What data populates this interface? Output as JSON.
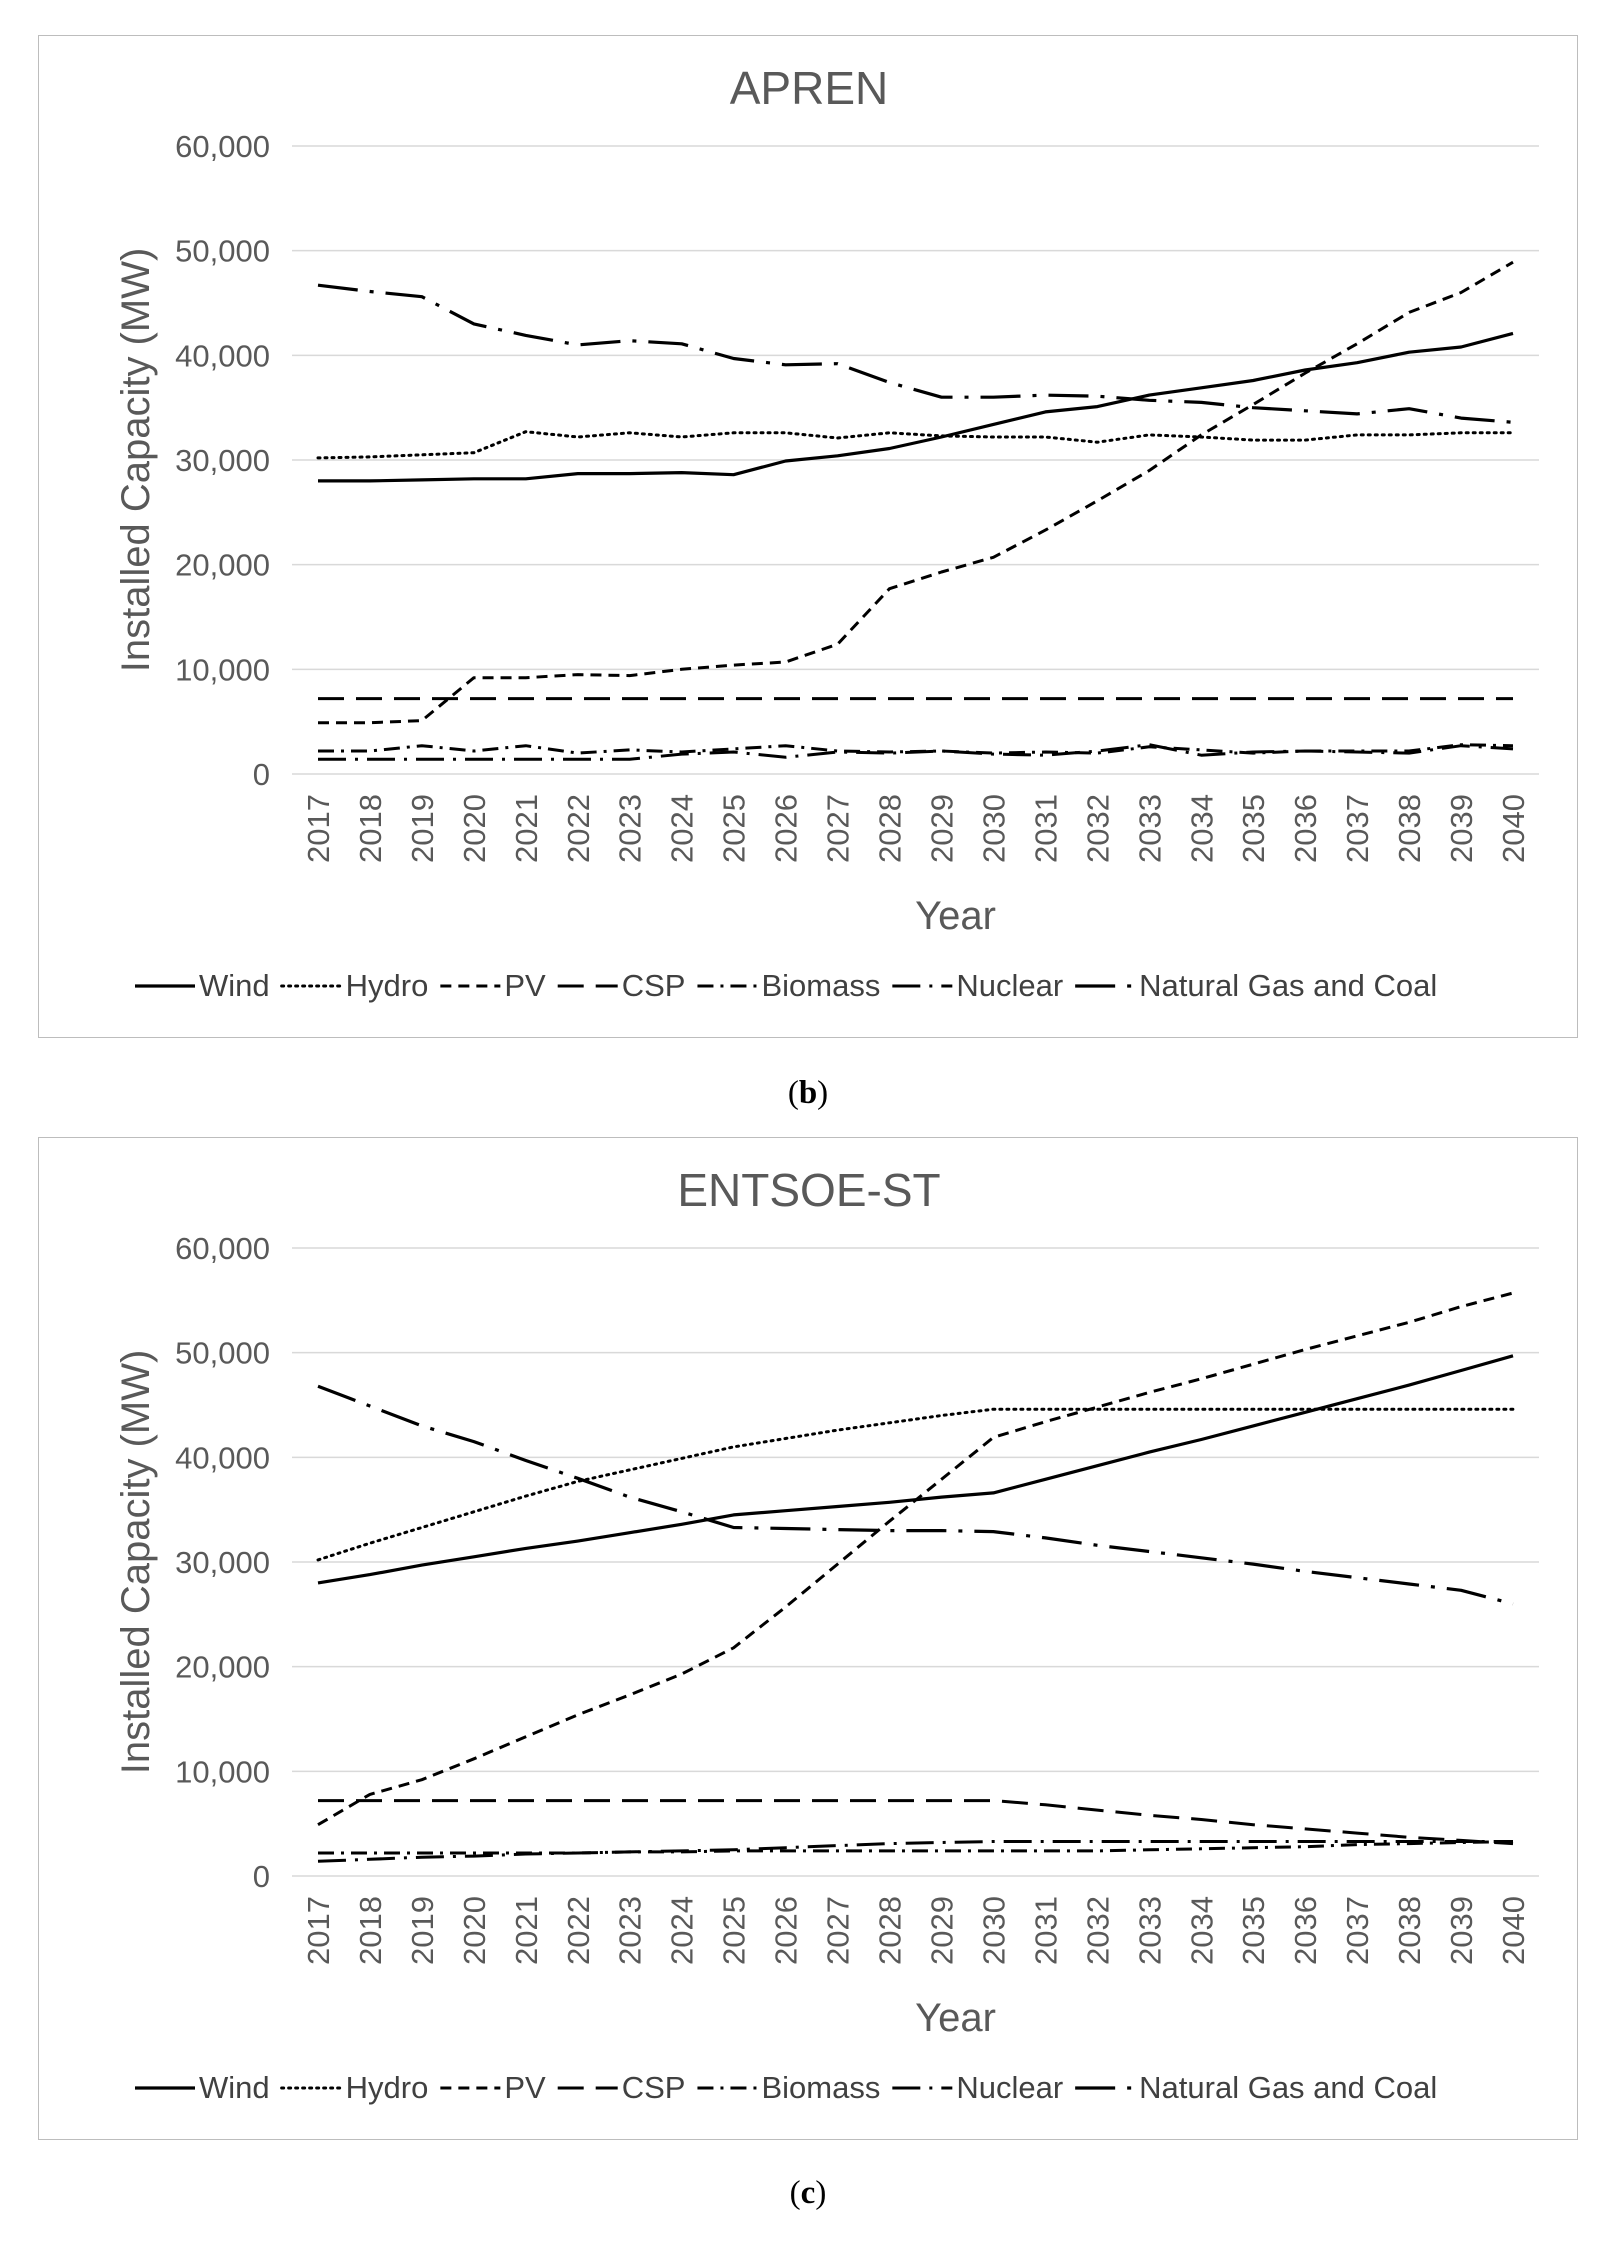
{
  "chart_data": [
    {
      "id": "b",
      "type": "line",
      "caption_label": "b",
      "title": "APREN",
      "xlabel": "Year",
      "ylabel": "Installed Capacity (MW)",
      "ylim": [
        0,
        60000
      ],
      "yticks": [
        0,
        10000,
        20000,
        30000,
        40000,
        50000,
        60000
      ],
      "ytick_labels": [
        "0",
        "10,000",
        "20,000",
        "30,000",
        "40,000",
        "50,000",
        "60,000"
      ],
      "grid": true,
      "legend_position": "bottom",
      "categories": [
        "2017",
        "2018",
        "2019",
        "2020",
        "2021",
        "2022",
        "2023",
        "2024",
        "2025",
        "2026",
        "2027",
        "2028",
        "2029",
        "2030",
        "2031",
        "2032",
        "2033",
        "2034",
        "2035",
        "2036",
        "2037",
        "2038",
        "2039",
        "2040"
      ],
      "series": [
        {
          "name": "Wind",
          "style": "solid",
          "values": [
            28000,
            28000,
            28100,
            28200,
            28200,
            28700,
            28700,
            28800,
            28600,
            29900,
            30400,
            31100,
            32200,
            33400,
            34600,
            35100,
            36200,
            36900,
            37600,
            38600,
            39300,
            40300,
            40800,
            42100
          ]
        },
        {
          "name": "Hydro",
          "style": "dotted",
          "values": [
            30200,
            30300,
            30500,
            30700,
            32700,
            32200,
            32600,
            32200,
            32600,
            32600,
            32100,
            32600,
            32300,
            32200,
            32200,
            31700,
            32400,
            32200,
            31900,
            31900,
            32400,
            32400,
            32600,
            32600
          ]
        },
        {
          "name": "PV",
          "style": "short-dash",
          "values": [
            4900,
            4900,
            5100,
            9200,
            9200,
            9500,
            9400,
            10000,
            10400,
            10700,
            12400,
            17700,
            19300,
            20700,
            23300,
            26100,
            29000,
            32400,
            35300,
            38300,
            41100,
            44100,
            46000,
            48900
          ]
        },
        {
          "name": "CSP",
          "style": "long-dash",
          "values": [
            7200,
            7200,
            7200,
            7200,
            7200,
            7200,
            7200,
            7200,
            7200,
            7200,
            7200,
            7200,
            7200,
            7200,
            7200,
            7200,
            7200,
            7200,
            7200,
            7200,
            7200,
            7200,
            7200,
            7200
          ]
        },
        {
          "name": "Biomass",
          "style": "dash-dot",
          "values": [
            2200,
            2200,
            2700,
            2200,
            2700,
            2000,
            2300,
            2100,
            2400,
            2700,
            2200,
            2100,
            2200,
            2000,
            2100,
            2000,
            2600,
            2300,
            2000,
            2200,
            2200,
            2200,
            2800,
            2700
          ]
        },
        {
          "name": "Nuclear",
          "style": "long-dash-dot",
          "values": [
            1400,
            1400,
            1400,
            1400,
            1400,
            1400,
            1400,
            1900,
            2100,
            1600,
            2100,
            2000,
            2200,
            1900,
            1800,
            2200,
            2800,
            1800,
            2100,
            2200,
            2100,
            2000,
            2700,
            2400
          ]
        },
        {
          "name": "Natural Gas and Coal",
          "style": "long-dash-dot-bold",
          "values": [
            46700,
            46100,
            45600,
            43000,
            41900,
            41000,
            41400,
            41100,
            39700,
            39100,
            39200,
            37400,
            36000,
            36000,
            36200,
            36100,
            35700,
            35500,
            35000,
            34700,
            34400,
            34900,
            34000,
            33600
          ]
        }
      ]
    },
    {
      "id": "c",
      "type": "line",
      "caption_label": "c",
      "title": "ENTSOE-ST",
      "xlabel": "Year",
      "ylabel": "Installed Capacity (MW)",
      "ylim": [
        0,
        60000
      ],
      "yticks": [
        0,
        10000,
        20000,
        30000,
        40000,
        50000,
        60000
      ],
      "ytick_labels": [
        "0",
        "10,000",
        "20,000",
        "30,000",
        "40,000",
        "50,000",
        "60,000"
      ],
      "grid": true,
      "legend_position": "bottom",
      "categories": [
        "2017",
        "2018",
        "2019",
        "2020",
        "2021",
        "2022",
        "2023",
        "2024",
        "2025",
        "2026",
        "2027",
        "2028",
        "2029",
        "2030",
        "2031",
        "2032",
        "2033",
        "2034",
        "2035",
        "2036",
        "2037",
        "2038",
        "2039",
        "2040"
      ],
      "series": [
        {
          "name": "Wind",
          "style": "solid",
          "values": [
            28000,
            28800,
            29700,
            30500,
            31300,
            32000,
            32800,
            33600,
            34500,
            34900,
            35300,
            35700,
            36200,
            36600,
            37900,
            39200,
            40500,
            41700,
            43000,
            44300,
            45600,
            46900,
            48300,
            49700
          ]
        },
        {
          "name": "Hydro",
          "style": "dotted",
          "values": [
            30200,
            31800,
            33300,
            34800,
            36300,
            37700,
            38800,
            39900,
            41000,
            41800,
            42600,
            43300,
            44000,
            44600,
            44600,
            44600,
            44600,
            44600,
            44600,
            44600,
            44600,
            44600,
            44600,
            44600
          ]
        },
        {
          "name": "PV",
          "style": "short-dash",
          "values": [
            4900,
            7800,
            9200,
            11200,
            13300,
            15400,
            17300,
            19300,
            21800,
            25700,
            29800,
            33900,
            37900,
            41900,
            43400,
            44800,
            46200,
            47500,
            48900,
            50300,
            51600,
            52900,
            54400,
            55700
          ]
        },
        {
          "name": "CSP",
          "style": "long-dash",
          "values": [
            7200,
            7200,
            7200,
            7200,
            7200,
            7200,
            7200,
            7200,
            7200,
            7200,
            7200,
            7200,
            7200,
            7200,
            6800,
            6300,
            5800,
            5400,
            4900,
            4500,
            4100,
            3700,
            3400,
            3100
          ]
        },
        {
          "name": "Biomass",
          "style": "dash-dot",
          "values": [
            2200,
            2200,
            2200,
            2200,
            2200,
            2200,
            2300,
            2300,
            2400,
            2400,
            2400,
            2400,
            2400,
            2400,
            2400,
            2400,
            2500,
            2600,
            2700,
            2800,
            3000,
            3100,
            3200,
            3300
          ]
        },
        {
          "name": "Nuclear",
          "style": "long-dash-dot",
          "values": [
            1400,
            1600,
            1800,
            1900,
            2100,
            2200,
            2300,
            2400,
            2500,
            2700,
            2900,
            3100,
            3200,
            3300,
            3300,
            3300,
            3300,
            3300,
            3300,
            3300,
            3300,
            3300,
            3300,
            3300
          ]
        },
        {
          "name": "Natural Gas and Coal",
          "style": "long-dash-dot-bold",
          "values": [
            46800,
            44900,
            43000,
            41500,
            39700,
            38000,
            36200,
            34800,
            33300,
            33200,
            33100,
            33000,
            33000,
            32900,
            32300,
            31600,
            31000,
            30400,
            29800,
            29100,
            28500,
            27900,
            27300,
            26000
          ]
        }
      ]
    }
  ]
}
